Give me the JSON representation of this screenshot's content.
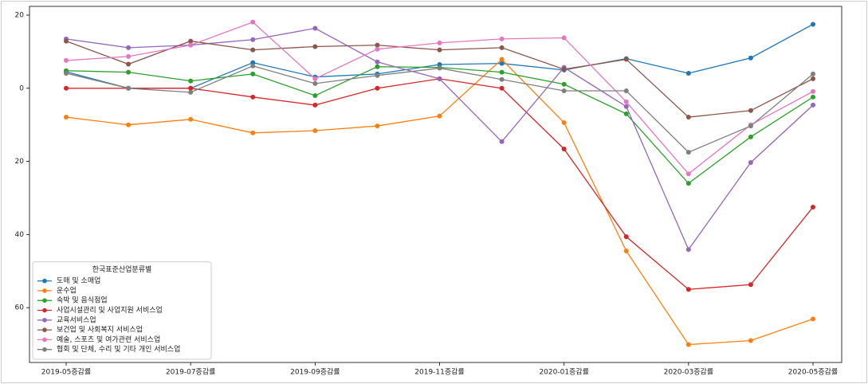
{
  "chart_data": {
    "type": "line",
    "legend_title": "한국표준산업분류별",
    "legend": "lower left",
    "grid": false,
    "categories": [
      "2019-05증감률",
      null,
      "2019-07증감률",
      null,
      "2019-09증감률",
      null,
      "2019-11증감률",
      null,
      "2020-01증감률",
      null,
      "2020-03증감률",
      null,
      "2020-05증감률"
    ],
    "ylim": [
      -75,
      22.4
    ],
    "yticks": [
      {
        "value": -60,
        "label": "60"
      },
      {
        "value": -40,
        "label": "40"
      },
      {
        "value": -20,
        "label": "20"
      },
      0,
      20
    ],
    "series": [
      {
        "name": "도매 및 소매업",
        "color": "#1f77b4",
        "values": [
          4.5,
          0,
          0,
          7.0,
          3.1,
          3.9,
          6.5,
          6.8,
          5.0,
          8.1,
          4.1,
          8.3,
          17.5
        ]
      },
      {
        "name": "운수업",
        "color": "#ff7f0e",
        "values": [
          -7.9,
          -10.0,
          -8.5,
          -12.2,
          -11.6,
          -10.3,
          -7.6,
          7.9,
          -9.4,
          -44.5,
          -70.1,
          -69.0,
          -63.1
        ]
      },
      {
        "name": "숙박 및 음식점업",
        "color": "#2ca02c",
        "values": [
          4.8,
          4.4,
          2.0,
          3.9,
          -2.0,
          5.9,
          5.7,
          4.4,
          1.1,
          -7.0,
          -26.0,
          -13.3,
          -2.4
        ]
      },
      {
        "name": "사업시설관리 및 사업지원 서비스업",
        "color": "#d62728",
        "values": [
          0,
          0,
          0,
          -2.4,
          -4.6,
          0,
          2.6,
          0,
          -16.6,
          -40.6,
          -55.0,
          -53.7,
          -32.5
        ]
      },
      {
        "name": "교육서비스업",
        "color": "#9467bd",
        "values": [
          13.5,
          11.1,
          11.8,
          13.3,
          16.4,
          7.2,
          2.6,
          -14.6,
          5.7,
          -5.0,
          -44.1,
          -20.3,
          -4.6
        ]
      },
      {
        "name": "보건업 및 사회복지 서비스업",
        "color": "#8c564b",
        "values": [
          12.9,
          6.6,
          12.9,
          10.5,
          11.4,
          11.8,
          10.5,
          11.1,
          5.2,
          7.9,
          -7.9,
          -6.1,
          2.6
        ]
      },
      {
        "name": "예술, 스포츠 및 여가관련 서비스업",
        "color": "#e377c2",
        "values": [
          7.6,
          8.7,
          11.8,
          18.1,
          2.6,
          10.7,
          12.4,
          13.5,
          13.8,
          -3.7,
          -23.4,
          -10.0,
          -0.9
        ]
      },
      {
        "name": "협회 및 단체, 수리 및 기타 개인 서비스업",
        "color": "#7f7f7f",
        "values": [
          4.1,
          0,
          -1.1,
          6.1,
          1.3,
          3.5,
          5.5,
          2.4,
          -0.7,
          -0.7,
          -17.5,
          -10.3,
          3.9
        ]
      }
    ]
  }
}
